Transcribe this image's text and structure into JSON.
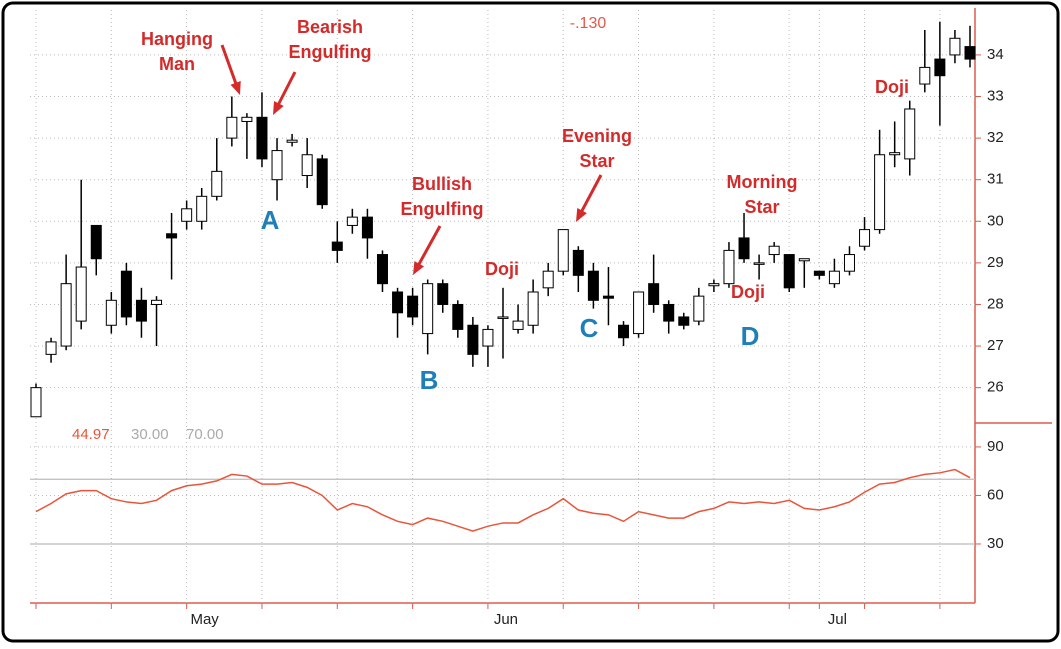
{
  "chart_data": [
    {
      "type": "candlestick",
      "readout": "-.130",
      "categories": [
        null,
        null,
        null,
        null,
        null,
        null,
        null,
        null,
        null,
        null,
        "May",
        null,
        null,
        null,
        null,
        null,
        null,
        null,
        null,
        null,
        null,
        null,
        null,
        null,
        null,
        null,
        null,
        null,
        null,
        null,
        "Jun",
        null,
        null,
        null,
        null,
        null,
        null,
        null,
        null,
        null,
        null,
        null,
        null,
        null,
        null,
        null,
        null,
        null,
        null,
        null,
        null,
        null,
        "Jul",
        null,
        null,
        null,
        null,
        null,
        null,
        null,
        null,
        null,
        null
      ],
      "open": [
        25.3,
        26.8,
        27.0,
        27.6,
        29.9,
        27.5,
        28.8,
        28.1,
        28.0,
        29.7,
        30.0,
        30.0,
        30.6,
        32.0,
        32.4,
        32.5,
        31.0,
        31.9,
        31.1,
        31.5,
        29.5,
        29.9,
        30.1,
        29.2,
        28.3,
        28.2,
        27.3,
        28.5,
        28.0,
        27.5,
        27.0,
        27.7,
        27.4,
        27.5,
        28.4,
        28.8,
        29.3,
        28.8,
        28.2,
        27.5,
        27.3,
        28.5,
        28.0,
        27.7,
        27.6,
        28.45,
        28.5,
        29.6,
        29.0,
        29.2,
        29.2,
        29.05,
        28.8,
        28.5,
        28.8,
        29.4,
        29.8,
        31.6,
        31.5,
        33.3,
        33.9,
        34.0,
        34.2
      ],
      "high": [
        26.1,
        27.2,
        29.2,
        31.0,
        29.9,
        28.3,
        29.0,
        28.4,
        28.2,
        30.2,
        30.5,
        30.8,
        32.0,
        33.0,
        32.6,
        33.1,
        32.0,
        32.1,
        32.0,
        31.6,
        30.0,
        30.3,
        30.3,
        29.3,
        28.4,
        28.4,
        28.6,
        28.6,
        28.1,
        27.7,
        27.5,
        28.4,
        28.0,
        28.6,
        29.0,
        29.8,
        29.4,
        29.0,
        28.9,
        27.6,
        28.3,
        29.2,
        28.1,
        27.8,
        28.4,
        28.6,
        29.5,
        30.2,
        29.2,
        29.5,
        29.2,
        29.1,
        28.8,
        29.1,
        29.4,
        30.1,
        32.2,
        32.4,
        32.9,
        34.6,
        34.8,
        34.6,
        34.7
      ],
      "low": [
        25.3,
        26.6,
        26.9,
        27.4,
        28.7,
        27.3,
        27.5,
        27.2,
        27.0,
        28.6,
        29.8,
        29.8,
        30.5,
        31.8,
        31.5,
        31.3,
        30.5,
        31.8,
        30.8,
        30.3,
        29.0,
        29.7,
        29.1,
        28.3,
        27.2,
        27.5,
        26.8,
        27.8,
        27.2,
        26.5,
        26.5,
        26.7,
        27.3,
        27.3,
        28.2,
        28.7,
        28.3,
        27.9,
        27.5,
        27.0,
        27.2,
        27.8,
        27.3,
        27.4,
        27.5,
        28.3,
        28.4,
        29.0,
        28.6,
        29.0,
        28.3,
        28.4,
        28.6,
        28.4,
        28.7,
        29.3,
        29.7,
        31.3,
        31.1,
        33.1,
        32.3,
        33.8,
        33.7
      ],
      "close": [
        26.0,
        27.1,
        28.5,
        28.9,
        29.1,
        28.1,
        27.7,
        27.6,
        28.1,
        29.6,
        30.3,
        30.6,
        31.2,
        32.5,
        32.5,
        31.5,
        31.7,
        31.95,
        31.6,
        30.4,
        29.3,
        30.1,
        29.6,
        28.5,
        27.8,
        27.7,
        28.5,
        28.0,
        27.4,
        26.8,
        27.4,
        27.7,
        27.6,
        28.3,
        28.8,
        29.8,
        28.7,
        28.1,
        28.15,
        27.2,
        28.3,
        28.0,
        27.6,
        27.5,
        28.2,
        28.5,
        29.3,
        29.1,
        29.0,
        29.4,
        28.4,
        29.1,
        28.7,
        28.8,
        29.2,
        29.8,
        31.6,
        31.65,
        32.7,
        33.7,
        33.5,
        34.4,
        33.9
      ],
      "up_color": "#ffffff",
      "down_color": "#000000",
      "ylim": [
        25.15,
        35.08
      ],
      "yticks": [
        26,
        27,
        28,
        29,
        30,
        31,
        32,
        33,
        34
      ],
      "grid": true,
      "annotations": [
        {
          "lines": [
            "Hanging",
            "Man"
          ]
        },
        {
          "lines": [
            "Bearish",
            "Engulfing"
          ]
        },
        {
          "lines": [
            "Bullish",
            "Engulfing"
          ]
        },
        {
          "lines": [
            "Doji"
          ]
        },
        {
          "lines": [
            "Evening",
            "Star"
          ]
        },
        {
          "lines": [
            "Morning",
            "Star"
          ]
        },
        {
          "lines": [
            "Doji"
          ]
        },
        {
          "lines": [
            "Doji"
          ]
        }
      ],
      "pattern_labels": [
        "A",
        "B",
        "C",
        "D"
      ]
    },
    {
      "type": "line",
      "value_label": "44.97",
      "levels": [
        {
          "value": 30,
          "label": "30.00"
        },
        {
          "value": 70,
          "label": "70.00"
        }
      ],
      "values": [
        50,
        55,
        61,
        63,
        63,
        58,
        56,
        55,
        57,
        63,
        66,
        67,
        69,
        73,
        72,
        67,
        67,
        68,
        65,
        60,
        51,
        55,
        53,
        48,
        44,
        42,
        46,
        44,
        41,
        38,
        41,
        43,
        43,
        48,
        52,
        58,
        51,
        49,
        48,
        44,
        50,
        48,
        46,
        46,
        50,
        52,
        56,
        55,
        56,
        55,
        57,
        52,
        51,
        53,
        56,
        62,
        67,
        68,
        71,
        73,
        74,
        76,
        71
      ],
      "color": "#e8553a",
      "ylim": [
        -6.5,
        104.8
      ],
      "yticks": [
        30,
        60,
        90
      ],
      "grid": true
    }
  ]
}
